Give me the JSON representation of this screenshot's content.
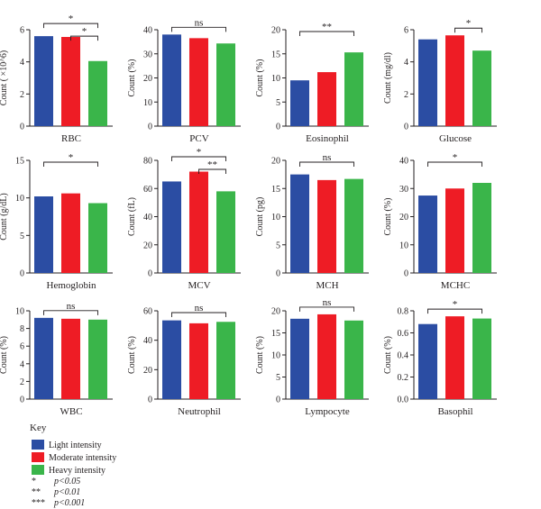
{
  "chart_data": [
    {
      "type": "bar",
      "xlabel": "RBC",
      "ylabel": "Count ( ×10^6)",
      "ylim": [
        0,
        6
      ],
      "yticks": [
        "0",
        "2",
        "4",
        "6"
      ],
      "values": [
        5.6,
        5.55,
        4.05
      ],
      "significance": [
        {
          "from": 0,
          "to": 2,
          "label": "*"
        },
        {
          "from": 1,
          "to": 2,
          "label": "*"
        }
      ]
    },
    {
      "type": "bar",
      "xlabel": "PCV",
      "ylabel": "Count (%)",
      "ylim": [
        0,
        40
      ],
      "yticks": [
        "0",
        "10",
        "20",
        "30",
        "40"
      ],
      "values": [
        38,
        36.5,
        34.3
      ],
      "significance": [
        {
          "from": 0,
          "to": 2,
          "label": "ns"
        }
      ]
    },
    {
      "type": "bar",
      "xlabel": "Eosinophil",
      "ylabel": "Count (%)",
      "ylim": [
        0,
        20
      ],
      "yticks": [
        "0",
        "5",
        "10",
        "15",
        "20"
      ],
      "values": [
        9.5,
        11.2,
        15.3
      ],
      "significance": [
        {
          "from": 0,
          "to": 2,
          "label": "**"
        }
      ]
    },
    {
      "type": "bar",
      "xlabel": "Glucose",
      "ylabel": "Count (mg/dl)",
      "ylim": [
        0,
        6
      ],
      "yticks": [
        "0",
        "2",
        "4",
        "6"
      ],
      "values": [
        5.4,
        5.65,
        4.7
      ],
      "significance": [
        {
          "from": 1,
          "to": 2,
          "label": "*"
        }
      ]
    },
    {
      "type": "bar",
      "xlabel": "Hemoglobin",
      "ylabel": "Count (g/dL)",
      "ylim": [
        0,
        15
      ],
      "yticks": [
        "0",
        "5",
        "10",
        "15"
      ],
      "values": [
        10.2,
        10.6,
        9.3
      ],
      "significance": [
        {
          "from": 0,
          "to": 2,
          "label": "*"
        }
      ]
    },
    {
      "type": "bar",
      "xlabel": "MCV",
      "ylabel": "Count (fL)",
      "ylim": [
        0,
        80
      ],
      "yticks": [
        "0",
        "20",
        "40",
        "60",
        "80"
      ],
      "values": [
        65,
        72,
        58
      ],
      "significance": [
        {
          "from": 0,
          "to": 2,
          "label": "*"
        },
        {
          "from": 1,
          "to": 2,
          "label": "**"
        }
      ]
    },
    {
      "type": "bar",
      "xlabel": "MCH",
      "ylabel": "Count (pg)",
      "ylim": [
        0,
        20
      ],
      "yticks": [
        "0",
        "5",
        "10",
        "15",
        "20"
      ],
      "values": [
        17.5,
        16.5,
        16.7
      ],
      "significance": [
        {
          "from": 0,
          "to": 2,
          "label": "ns"
        }
      ]
    },
    {
      "type": "bar",
      "xlabel": "MCHC",
      "ylabel": "Count (%)",
      "ylim": [
        0,
        40
      ],
      "yticks": [
        "0",
        "10",
        "20",
        "30",
        "40"
      ],
      "values": [
        27.5,
        30,
        32
      ],
      "significance": [
        {
          "from": 0,
          "to": 2,
          "label": "*"
        }
      ]
    },
    {
      "type": "bar",
      "xlabel": "WBC",
      "ylabel": "Count (%)",
      "ylim": [
        0,
        10
      ],
      "yticks": [
        "0",
        "2",
        "4",
        "6",
        "8",
        "10"
      ],
      "values": [
        9.2,
        9.1,
        9.0
      ],
      "significance": [
        {
          "from": 0,
          "to": 2,
          "label": "ns"
        }
      ]
    },
    {
      "type": "bar",
      "xlabel": "Neutrophil",
      "ylabel": "Count (%)",
      "ylim": [
        0,
        60
      ],
      "yticks": [
        "0",
        "20",
        "40",
        "60"
      ],
      "values": [
        53.5,
        51.5,
        52.5
      ],
      "significance": [
        {
          "from": 0,
          "to": 2,
          "label": "ns"
        }
      ]
    },
    {
      "type": "bar",
      "xlabel": "Lympocyte",
      "ylabel": "Count (%)",
      "ylim": [
        0,
        20
      ],
      "yticks": [
        "0",
        "5",
        "10",
        "15",
        "20"
      ],
      "values": [
        18.2,
        19.2,
        17.8
      ],
      "significance": [
        {
          "from": 0,
          "to": 2,
          "label": "ns"
        }
      ]
    },
    {
      "type": "bar",
      "xlabel": "Basophil",
      "ylabel": "Count (%)",
      "ylim": [
        0,
        0.8
      ],
      "yticks": [
        "0.0",
        "0.2",
        "0.4",
        "0.6",
        "0.8"
      ],
      "values": [
        0.68,
        0.75,
        0.73
      ],
      "significance": [
        {
          "from": 0,
          "to": 2,
          "label": "*"
        }
      ]
    }
  ],
  "colors": [
    "#2b4da3",
    "#ee1c25",
    "#3ab54a"
  ],
  "key": {
    "title": "Key",
    "groups": [
      "Light intensity",
      "Moderate intensity",
      "Heavy intensity"
    ],
    "significance": [
      {
        "symbol": "*",
        "text": "p<0.05"
      },
      {
        "symbol": "**",
        "text": "p<0.01"
      },
      {
        "symbol": "***",
        "text": "p<0.001"
      }
    ]
  }
}
